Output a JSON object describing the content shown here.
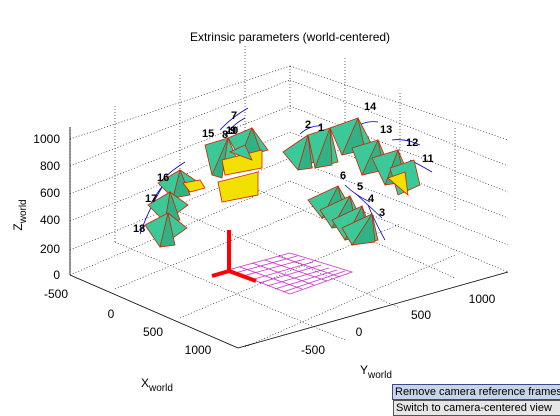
{
  "window": {
    "title": "Extrinsic parameters (world-centered)"
  },
  "axes": {
    "x_label": "X",
    "x_sub": "world",
    "y_label": "Y",
    "y_sub": "world",
    "z_label": "Z",
    "z_sub": "world",
    "z_ticks": [
      "0",
      "200",
      "400",
      "600",
      "800",
      "1000"
    ],
    "x_ticks": [
      "-500",
      "0",
      "500",
      "1000"
    ],
    "y_ticks": [
      "-500",
      "0",
      "500",
      "1000"
    ]
  },
  "cameras": [
    "1",
    "2",
    "3",
    "4",
    "5",
    "6",
    "7",
    "8",
    "9",
    "10",
    "11",
    "12",
    "13",
    "14",
    "15",
    "16",
    "17",
    "18"
  ],
  "colors": {
    "camera_face": "#3cc99a",
    "camera_top": "#f2e100",
    "camera_edge": "#cc2200",
    "grid": "#cc33cc",
    "axis_frame": "#ff0000",
    "ray": "#0000cc"
  },
  "buttons": {
    "remove_frames": "Remove camera reference frames",
    "switch_view": "Switch to camera-centered view"
  }
}
